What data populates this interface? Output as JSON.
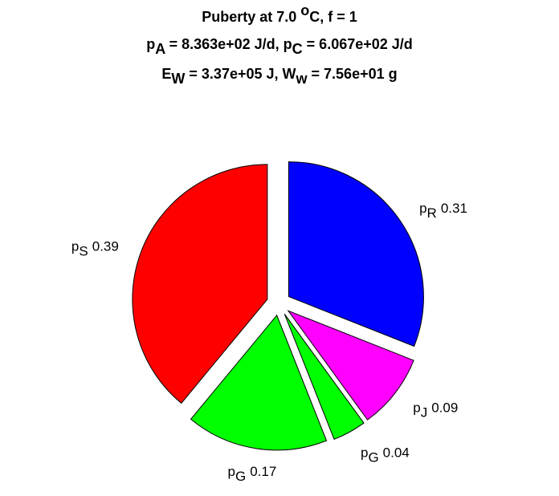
{
  "chart_data": {
    "type": "pie",
    "title_lines": [
      [
        {
          "text": "Puberty at 7.0 "
        },
        {
          "text": "o",
          "pos": "sup"
        },
        {
          "text": "C, f = 1"
        }
      ],
      [
        {
          "text": "p"
        },
        {
          "text": "A",
          "pos": "sub"
        },
        {
          "text": " = 8.363e+02 J/d,  p"
        },
        {
          "text": "C",
          "pos": "sub"
        },
        {
          "text": " = 6.067e+02 J/d"
        }
      ],
      [
        {
          "text": "E"
        },
        {
          "text": "W",
          "pos": "sub"
        },
        {
          "text": " = 3.37e+05 J, W"
        },
        {
          "text": "w",
          "pos": "sub"
        },
        {
          "text": " = 7.56e+01 g"
        }
      ]
    ],
    "slices": [
      {
        "symbol": "p",
        "subscript": "R",
        "color": "#0000ff"
      },
      {
        "symbol": "p",
        "subscript": "J",
        "color": "#ff00ff"
      },
      {
        "symbol": "p",
        "subscript": "G",
        "color": "#00ff00"
      },
      {
        "symbol": "p",
        "subscript": "G",
        "color": "#00ff00"
      },
      {
        "symbol": "p",
        "subscript": "S",
        "color": "#ff0000"
      }
    ],
    "values": [
      0.31,
      0.09,
      0.04,
      0.17,
      0.39
    ],
    "explode": true
  }
}
